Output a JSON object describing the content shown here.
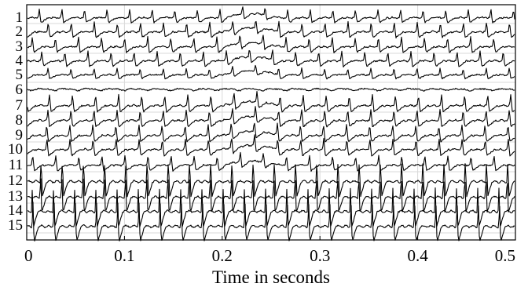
{
  "chart_data": {
    "type": "line",
    "title": "",
    "xlabel": "Time in seconds",
    "ylabel": "",
    "xlim": [
      0,
      0.5
    ],
    "x_ticks": [
      0,
      0.1,
      0.2,
      0.3,
      0.4,
      0.5
    ],
    "x_tick_labels": [
      "0",
      "0.1",
      "0.2",
      "0.3",
      "0.4",
      "0.5"
    ],
    "grid": true,
    "legend": "none",
    "channels": [
      {
        "label": "1",
        "period": 0.0231,
        "amp": 0.75,
        "shape": "spiky"
      },
      {
        "label": "2",
        "period": 0.0236,
        "amp": 0.85,
        "shape": "spiky"
      },
      {
        "label": "3",
        "period": 0.0236,
        "amp": 0.85,
        "shape": "spiky"
      },
      {
        "label": "4",
        "period": 0.0236,
        "amp": 0.85,
        "shape": "spiky"
      },
      {
        "label": "5",
        "period": 0.0236,
        "amp": 0.6,
        "shape": "spiky"
      },
      {
        "label": "6",
        "period": 0.0236,
        "amp": 0.25,
        "shape": "smooth"
      },
      {
        "label": "7",
        "period": 0.0236,
        "amp": 0.95,
        "shape": "spiky"
      },
      {
        "label": "8",
        "period": 0.0236,
        "amp": 0.95,
        "shape": "spiky"
      },
      {
        "label": "9",
        "period": 0.0236,
        "amp": 0.95,
        "shape": "spiky"
      },
      {
        "label": "10",
        "period": 0.0236,
        "amp": 0.95,
        "shape": "spiky"
      },
      {
        "label": "11",
        "period": 0.0236,
        "amp": 0.85,
        "shape": "spiky"
      },
      {
        "label": "12",
        "period": 0.0217,
        "amp": 1.25,
        "shape": "sharp"
      },
      {
        "label": "13",
        "period": 0.0217,
        "amp": 1.25,
        "shape": "sharp"
      },
      {
        "label": "14",
        "period": 0.0217,
        "amp": 1.3,
        "shape": "sharp"
      },
      {
        "label": "15",
        "period": 0.0217,
        "amp": 1.3,
        "shape": "sharp"
      }
    ]
  }
}
